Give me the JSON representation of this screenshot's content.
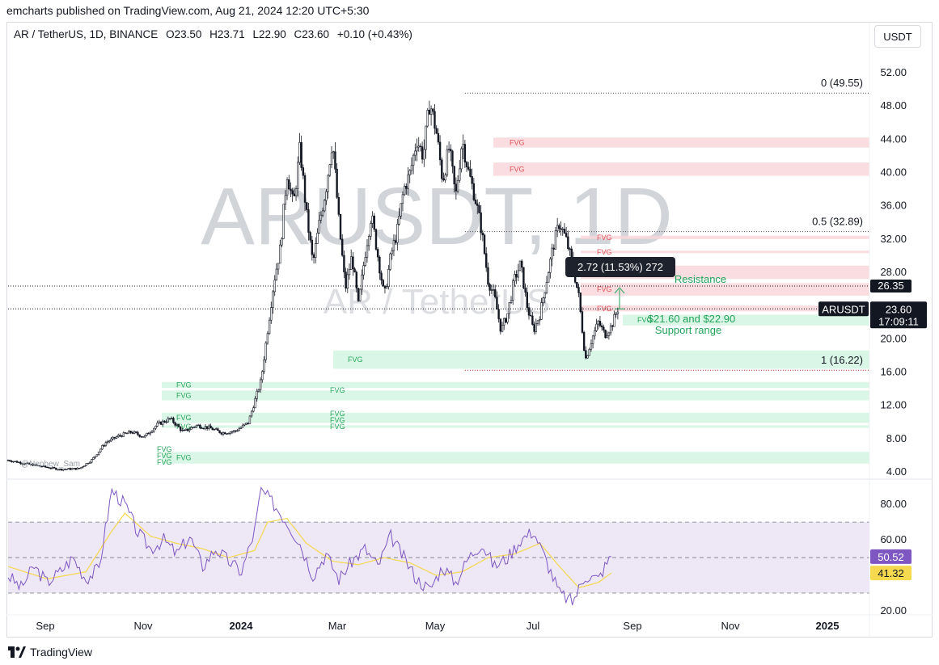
{
  "publisher": "emcharts published on TradingView.com, Aug 21, 2024 12:20 UTC+5:30",
  "header": {
    "symbol": "AR / TetherUS, 1D, BINANCE",
    "open": "O23.50",
    "high": "H23.71",
    "low": "L22.90",
    "close": "C23.60",
    "change": "+0.10 (+0.43%)"
  },
  "currency_button": "USDT",
  "footer": {
    "brand": "TradingView"
  },
  "watermark": {
    "big": "ARUSDT, 1D",
    "small": "AR / TetherUS"
  },
  "colors": {
    "up": "#131722",
    "fvg_red": "#f8d7da",
    "fvg_green": "#d4f5e2",
    "rsi_line": "#7e57c2",
    "rsi_ma": "#f5d94e",
    "rsi_band": "#ede7f6"
  },
  "chart_data": [
    {
      "type": "candlestick",
      "symbol": "ARUSDT",
      "x_labels": [
        "Sep",
        "Nov",
        "2024",
        "Mar",
        "May",
        "Jul",
        "Sep",
        "Nov",
        "2025"
      ],
      "y_ticks": [
        "52.00",
        "48.00",
        "44.00",
        "40.00",
        "36.00",
        "32.00",
        "28.00",
        "20.00",
        "16.00",
        "12.00",
        "8.00",
        "4.00"
      ],
      "ylim": [
        4,
        52
      ],
      "price_path": [
        [
          0,
          5.4
        ],
        [
          4,
          4.8
        ],
        [
          8,
          4.3
        ],
        [
          11,
          4.4
        ],
        [
          13,
          5.5
        ],
        [
          15,
          7.5
        ],
        [
          17,
          8.3
        ],
        [
          19,
          8.8
        ],
        [
          21,
          8.2
        ],
        [
          23,
          9.7
        ],
        [
          25,
          10.4
        ],
        [
          27,
          8.8
        ],
        [
          29,
          9.6
        ],
        [
          31,
          9.3
        ],
        [
          33,
          8.7
        ],
        [
          35,
          8.9
        ],
        [
          37,
          9.9
        ],
        [
          39,
          15.0
        ],
        [
          41,
          27.0
        ],
        [
          42,
          31.0
        ],
        [
          43,
          40.0
        ],
        [
          44,
          36.0
        ],
        [
          45,
          43.0
        ],
        [
          46,
          35.0
        ],
        [
          47,
          29.0
        ],
        [
          48,
          34.0
        ],
        [
          49,
          38.0
        ],
        [
          50,
          44.0
        ],
        [
          51,
          34.0
        ],
        [
          52,
          26.0
        ],
        [
          53,
          30.0
        ],
        [
          54,
          24.0
        ],
        [
          55,
          30.0
        ],
        [
          56,
          35.0
        ],
        [
          57,
          30.0
        ],
        [
          58,
          25.0
        ],
        [
          59,
          30.0
        ],
        [
          60,
          33.0
        ],
        [
          61,
          38.0
        ],
        [
          62,
          40.0
        ],
        [
          63,
          44.0
        ],
        [
          64,
          42.0
        ],
        [
          65,
          48.5
        ],
        [
          66,
          45.0
        ],
        [
          67,
          39.0
        ],
        [
          68,
          43.0
        ],
        [
          69,
          37.0
        ],
        [
          70,
          44.0
        ],
        [
          71,
          40.0
        ],
        [
          72,
          37.0
        ],
        [
          73,
          33.0
        ],
        [
          74,
          27.0
        ],
        [
          75,
          25.0
        ],
        [
          76,
          21.0
        ],
        [
          77,
          23.0
        ],
        [
          78,
          27.0
        ],
        [
          79,
          29.0
        ],
        [
          80,
          24.0
        ],
        [
          81,
          21.0
        ],
        [
          82,
          23.0
        ],
        [
          83,
          27.0
        ],
        [
          84,
          31.0
        ],
        [
          85,
          34.0
        ],
        [
          86,
          32.0
        ],
        [
          87,
          29.0
        ],
        [
          88,
          25.0
        ],
        [
          89,
          17.5
        ],
        [
          90,
          20.0
        ],
        [
          91,
          22.0
        ],
        [
          92,
          20.5
        ],
        [
          93,
          21.5
        ],
        [
          94,
          23.6
        ]
      ],
      "fib_levels": [
        {
          "label": "0 (49.55)",
          "value": 49.55
        },
        {
          "label": "0.5 (32.89)",
          "value": 32.89
        },
        {
          "label": "1 (16.22)",
          "value": 16.22
        }
      ],
      "fvg_zones": [
        {
          "label": "FVG",
          "kind": "bearish",
          "low": 43.0,
          "high": 44.2
        },
        {
          "label": "FVG",
          "kind": "bearish",
          "low": 39.6,
          "high": 41.2
        },
        {
          "label": "FVG",
          "kind": "bearish",
          "low": 32.0,
          "high": 32.4
        },
        {
          "label": "FVG",
          "kind": "bearish",
          "low": 30.3,
          "high": 30.6
        },
        {
          "label": "FVG",
          "kind": "bearish",
          "low": 27.2,
          "high": 28.8
        },
        {
          "label": "FVG",
          "kind": "bearish",
          "low": 25.2,
          "high": 26.7
        },
        {
          "label": "FVG",
          "kind": "bearish",
          "low": 23.3,
          "high": 24.0
        },
        {
          "label": "FVG",
          "kind": "bullish",
          "low": 21.6,
          "high": 22.9
        },
        {
          "label": "FVG",
          "kind": "bullish",
          "low": 16.4,
          "high": 18.6
        },
        {
          "label": "FVG",
          "kind": "bullish",
          "low": 14.1,
          "high": 14.8
        },
        {
          "label": "FVG",
          "kind": "bullish",
          "low": 12.6,
          "high": 13.8
        },
        {
          "label": "FVG",
          "kind": "bullish",
          "low": 9.9,
          "high": 11.1
        },
        {
          "label": "FVG",
          "kind": "bullish",
          "low": 9.3,
          "high": 9.6
        },
        {
          "label": "FVG",
          "kind": "bullish",
          "low": 5.0,
          "high": 6.4
        }
      ],
      "fvg_left_labels": [
        "FVG",
        "FVG",
        "FVG",
        "FVG",
        "FVG",
        "FVG",
        "FVG"
      ],
      "horizontal_lines": [
        {
          "value": 26.35
        },
        {
          "value": 23.6
        }
      ],
      "price_tags": [
        {
          "label": "26.35",
          "value": 26.35
        },
        {
          "label": "ARUSDT",
          "value": 23.6
        },
        {
          "label": "23.60",
          "value": 23.6
        },
        {
          "label": "17:09:11",
          "value": 23.6
        }
      ],
      "annotations": {
        "measure_box": "2.72 (11.53%) 272",
        "resistance": "Resistance",
        "support_line1": "$21.60 and $22.90",
        "support_line2": "Support range",
        "author_mark": "@Nephew_Sam"
      }
    },
    {
      "type": "line",
      "name": "RSI",
      "y_ticks": [
        "80.00",
        "60.00",
        "20.00"
      ],
      "ylim": [
        20,
        96
      ],
      "bands": [
        70,
        50,
        30
      ],
      "value_labels": [
        "50.52",
        "41.32"
      ],
      "rsi_path": [
        [
          0,
          40
        ],
        [
          2,
          33
        ],
        [
          4,
          45
        ],
        [
          6,
          36
        ],
        [
          8,
          42
        ],
        [
          10,
          50
        ],
        [
          12,
          38
        ],
        [
          14,
          44
        ],
        [
          16,
          88
        ],
        [
          18,
          80
        ],
        [
          20,
          64
        ],
        [
          22,
          55
        ],
        [
          24,
          60
        ],
        [
          26,
          52
        ],
        [
          28,
          62
        ],
        [
          30,
          45
        ],
        [
          32,
          55
        ],
        [
          34,
          48
        ],
        [
          36,
          42
        ],
        [
          38,
          65
        ],
        [
          39,
          88
        ],
        [
          41,
          80
        ],
        [
          43,
          70
        ],
        [
          45,
          58
        ],
        [
          47,
          40
        ],
        [
          49,
          52
        ],
        [
          51,
          38
        ],
        [
          53,
          48
        ],
        [
          55,
          55
        ],
        [
          57,
          45
        ],
        [
          59,
          62
        ],
        [
          61,
          50
        ],
        [
          63,
          38
        ],
        [
          65,
          32
        ],
        [
          67,
          45
        ],
        [
          69,
          36
        ],
        [
          71,
          50
        ],
        [
          73,
          58
        ],
        [
          75,
          45
        ],
        [
          77,
          50
        ],
        [
          79,
          60
        ],
        [
          81,
          65
        ],
        [
          83,
          48
        ],
        [
          85,
          30
        ],
        [
          87,
          25
        ],
        [
          89,
          40
        ],
        [
          91,
          38
        ],
        [
          92,
          45
        ],
        [
          93,
          50.52
        ]
      ],
      "rsi_ma_path": [
        [
          0,
          45
        ],
        [
          6,
          38
        ],
        [
          12,
          42
        ],
        [
          16,
          65
        ],
        [
          18,
          75
        ],
        [
          22,
          62
        ],
        [
          26,
          58
        ],
        [
          30,
          55
        ],
        [
          34,
          50
        ],
        [
          38,
          54
        ],
        [
          40,
          70
        ],
        [
          43,
          72
        ],
        [
          46,
          58
        ],
        [
          50,
          48
        ],
        [
          54,
          46
        ],
        [
          58,
          50
        ],
        [
          62,
          47
        ],
        [
          66,
          40
        ],
        [
          70,
          42
        ],
        [
          74,
          50
        ],
        [
          78,
          52
        ],
        [
          82,
          58
        ],
        [
          85,
          45
        ],
        [
          88,
          33
        ],
        [
          91,
          36
        ],
        [
          93,
          41.32
        ]
      ]
    }
  ]
}
